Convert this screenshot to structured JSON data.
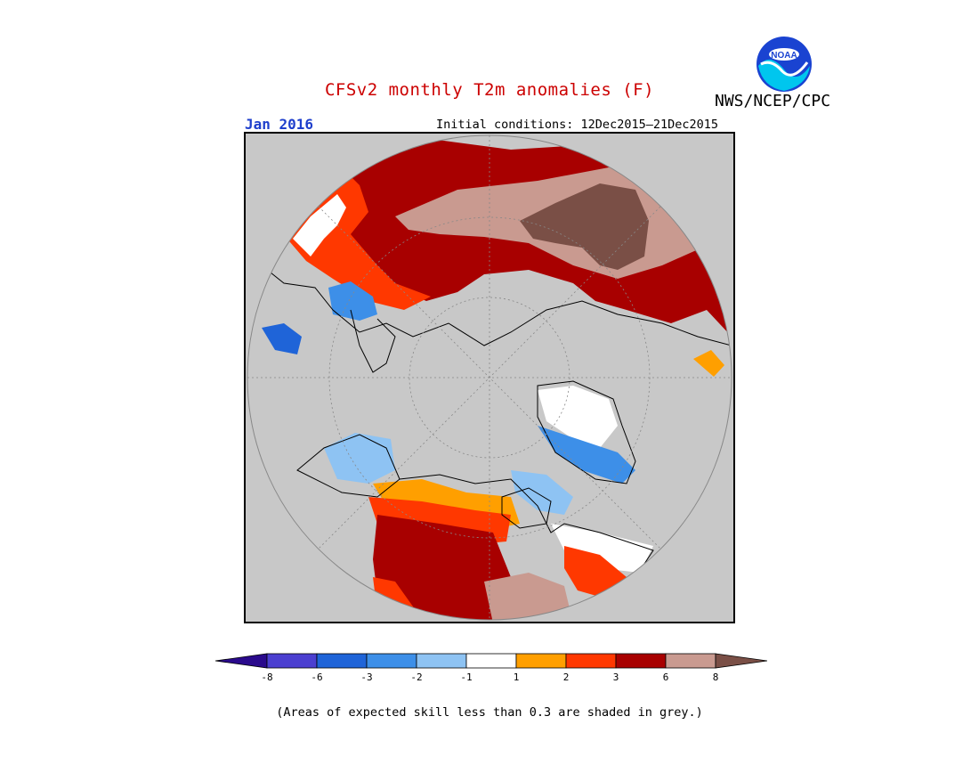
{
  "header": {
    "title": "CFSv2 monthly T2m anomalies (F)",
    "month": "Jan 2016",
    "initial_conditions": "Initial conditions: 12Dec2015–21Dec2015",
    "agency": "NWS/NCEP/CPC",
    "logo_text": "NOAA"
  },
  "colorbar": {
    "tick_labels": [
      "-8",
      "-6",
      "-3",
      "-2",
      "-1",
      "1",
      "2",
      "3",
      "6",
      "8"
    ],
    "colors": [
      "#2a0a8c",
      "#4b3fd0",
      "#1f64d8",
      "#3d8fe8",
      "#8ec3f3",
      "#ffffff",
      "#ff9f00",
      "#ff3800",
      "#a80000",
      "#c99a90",
      "#7a4f46"
    ]
  },
  "footnote": "(Areas of expected skill less than 0.3 are shaded in grey.)",
  "map": {
    "projection": "north-polar-stereographic",
    "background_color": "#c8c8c8"
  }
}
